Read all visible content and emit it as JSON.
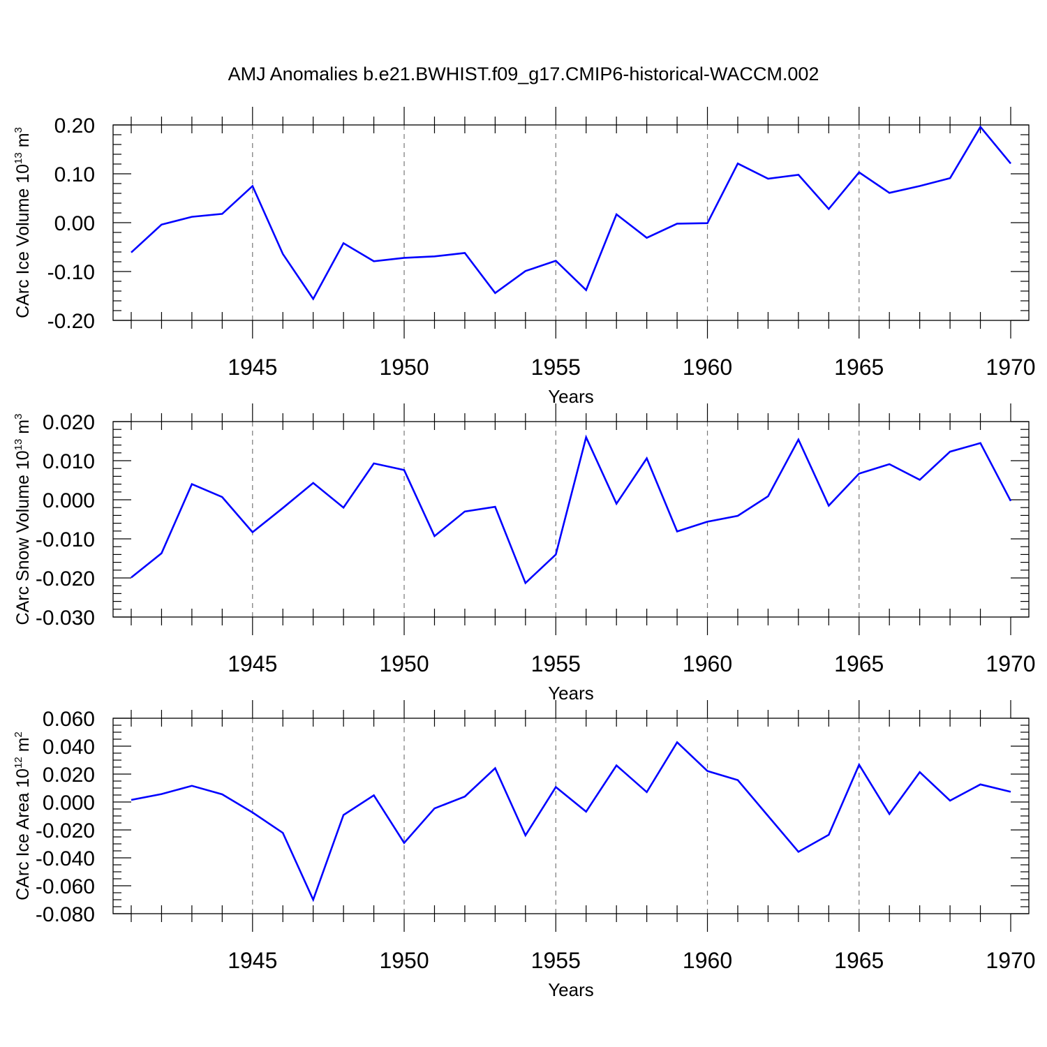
{
  "title": "AMJ Anomalies b.e21.BWHIST.f09_g17.CMIP6-historical-WACCM.002",
  "colors": {
    "line": "#0000ff",
    "axis": "#000000",
    "grid": "#777777"
  },
  "chart_data": [
    {
      "type": "line",
      "id": "ice-volume",
      "ylabel": {
        "main": "CArc Ice Volume 10",
        "exp": "13",
        "unit": " m",
        "unit_exp": "3"
      },
      "xlabel": "Years",
      "xlim": [
        1941,
        1970
      ],
      "ylim": [
        -0.2,
        0.2
      ],
      "yticks": [
        -0.2,
        -0.1,
        0.0,
        0.1,
        0.2
      ],
      "ytick_labels": [
        "-0.20",
        "-0.10",
        "0.00",
        "0.10",
        "0.20"
      ],
      "yminor_step": 0.02,
      "xticks": [
        1945,
        1950,
        1955,
        1960,
        1965,
        1970
      ],
      "xtick_labels": [
        "1945",
        "1950",
        "1955",
        "1960",
        "1965",
        "1970"
      ],
      "grid": "dashed vertical at major x ticks",
      "x": [
        1941,
        1942,
        1943,
        1944,
        1945,
        1946,
        1947,
        1948,
        1949,
        1950,
        1951,
        1952,
        1953,
        1954,
        1955,
        1956,
        1957,
        1958,
        1959,
        1960,
        1961,
        1962,
        1963,
        1964,
        1965,
        1966,
        1967,
        1968,
        1969,
        1970
      ],
      "values": [
        -0.061,
        -0.004,
        0.012,
        0.018,
        0.075,
        -0.064,
        -0.156,
        -0.042,
        -0.079,
        -0.072,
        -0.069,
        -0.062,
        -0.144,
        -0.099,
        -0.078,
        -0.138,
        0.017,
        -0.031,
        -0.002,
        -0.001,
        0.121,
        0.09,
        0.098,
        0.028,
        0.103,
        0.061,
        0.075,
        0.091,
        0.196,
        0.121
      ]
    },
    {
      "type": "line",
      "id": "snow-volume",
      "ylabel": {
        "main": "CArc Snow Volume 10",
        "exp": "13",
        "unit": " m",
        "unit_exp": "3"
      },
      "xlabel": "Years",
      "xlim": [
        1941,
        1970
      ],
      "ylim": [
        -0.03,
        0.02
      ],
      "yticks": [
        -0.03,
        -0.02,
        -0.01,
        0.0,
        0.01,
        0.02
      ],
      "ytick_labels": [
        "-0.030",
        "-0.020",
        "-0.010",
        "0.000",
        "0.010",
        "0.020"
      ],
      "yminor_step": 0.002,
      "xticks": [
        1945,
        1950,
        1955,
        1960,
        1965,
        1970
      ],
      "xtick_labels": [
        "1945",
        "1950",
        "1955",
        "1960",
        "1965",
        "1970"
      ],
      "grid": "dashed vertical at major x ticks",
      "x": [
        1941,
        1942,
        1943,
        1944,
        1945,
        1946,
        1947,
        1948,
        1949,
        1950,
        1951,
        1952,
        1953,
        1954,
        1955,
        1956,
        1957,
        1958,
        1959,
        1960,
        1961,
        1962,
        1963,
        1964,
        1965,
        1966,
        1967,
        1968,
        1969,
        1970
      ],
      "values": [
        -0.0199,
        -0.0137,
        0.004,
        0.0007,
        -0.0083,
        -0.0021,
        0.0043,
        -0.002,
        0.0093,
        0.0076,
        -0.0093,
        -0.003,
        -0.0018,
        -0.0213,
        -0.014,
        0.016,
        -0.001,
        0.0106,
        -0.0081,
        -0.0056,
        -0.0041,
        0.0009,
        0.0154,
        -0.0015,
        0.0067,
        0.0091,
        0.0051,
        0.0123,
        0.0145,
        -0.0003
      ]
    },
    {
      "type": "line",
      "id": "ice-area",
      "ylabel": {
        "main": "CArc Ice Area 10",
        "exp": "12",
        "unit": " m",
        "unit_exp": "2"
      },
      "xlabel": "Years",
      "xlim": [
        1941,
        1970
      ],
      "ylim": [
        -0.08,
        0.06
      ],
      "yticks": [
        -0.08,
        -0.06,
        -0.04,
        -0.02,
        0.0,
        0.02,
        0.04,
        0.06
      ],
      "ytick_labels": [
        "-0.080",
        "-0.060",
        "-0.040",
        "-0.020",
        "0.000",
        "0.020",
        "0.040",
        "0.060"
      ],
      "yminor_step": 0.005,
      "xticks": [
        1945,
        1950,
        1955,
        1960,
        1965,
        1970
      ],
      "xtick_labels": [
        "1945",
        "1950",
        "1955",
        "1960",
        "1965",
        "1970"
      ],
      "grid": "dashed vertical at major x ticks",
      "x": [
        1941,
        1942,
        1943,
        1944,
        1945,
        1946,
        1947,
        1948,
        1949,
        1950,
        1951,
        1952,
        1953,
        1954,
        1955,
        1956,
        1957,
        1958,
        1959,
        1960,
        1961,
        1962,
        1963,
        1964,
        1965,
        1966,
        1967,
        1968,
        1969,
        1970
      ],
      "values": [
        0.0015,
        0.0057,
        0.0116,
        0.0055,
        -0.0075,
        -0.0221,
        -0.07,
        -0.0093,
        0.0048,
        -0.0293,
        -0.0046,
        0.0039,
        0.0242,
        -0.0239,
        0.0107,
        -0.0069,
        0.0262,
        0.0071,
        0.0428,
        0.0222,
        0.0157,
        -0.01,
        -0.0357,
        -0.0235,
        0.0267,
        -0.0086,
        0.0214,
        0.001,
        0.0126,
        0.0073
      ]
    }
  ]
}
